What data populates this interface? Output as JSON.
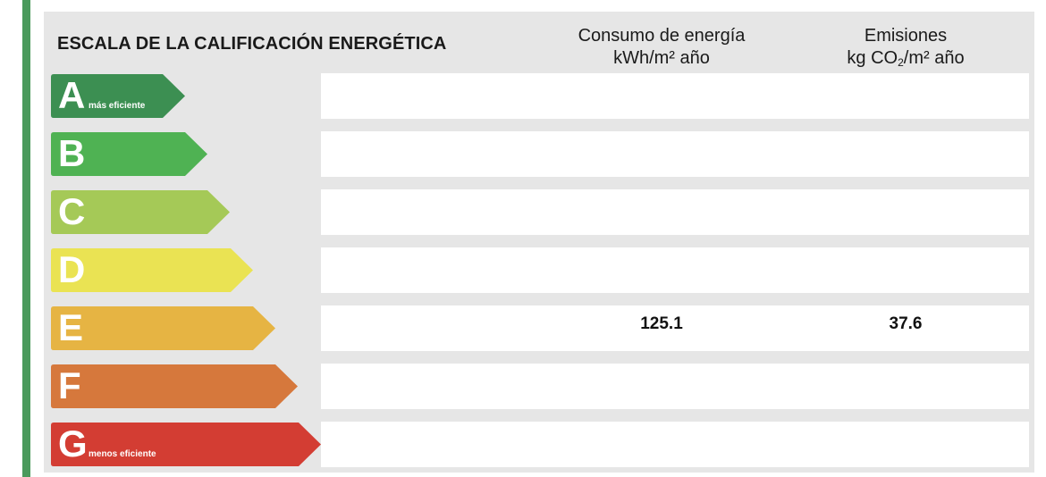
{
  "title": "ESCALA DE LA CALIFICACIÓN ENERGÉTICA",
  "columns": {
    "consumo": {
      "line1": "Consumo de energía",
      "line2": "kWh/m² año"
    },
    "emisiones": {
      "line1": "Emisiones",
      "line2_pre": "kg CO",
      "line2_sub": "2",
      "line2_post": "/m² año"
    }
  },
  "ratings": [
    {
      "letter": "A",
      "note": "más eficiente",
      "color": "#3c8f52"
    },
    {
      "letter": "B",
      "note": "",
      "color": "#4fb253"
    },
    {
      "letter": "C",
      "note": "",
      "color": "#a5c957"
    },
    {
      "letter": "D",
      "note": "",
      "color": "#eae353"
    },
    {
      "letter": "E",
      "note": "",
      "color": "#e6b443"
    },
    {
      "letter": "F",
      "note": "",
      "color": "#d6783c"
    },
    {
      "letter": "G",
      "note": "menos eficiente",
      "color": "#d33d33"
    }
  ],
  "current": {
    "rating": "E",
    "consumo": "125.1",
    "emisiones": "37.6"
  }
}
